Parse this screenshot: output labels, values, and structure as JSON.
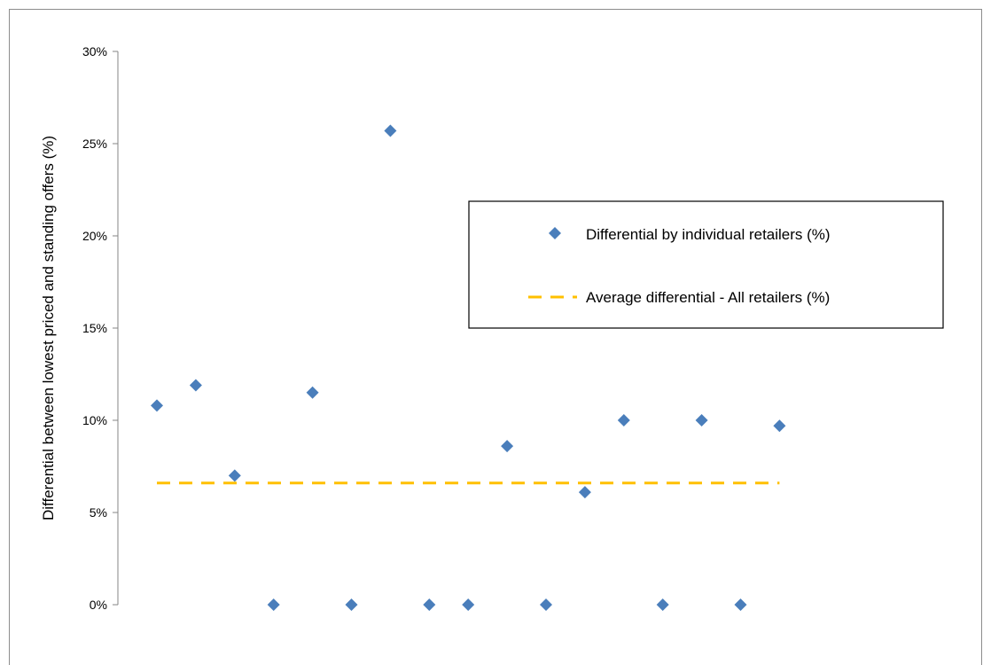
{
  "chart_data": {
    "type": "scatter",
    "title": "",
    "xlabel": "",
    "ylabel": "Differential between lowest priced  and standing offers (%)",
    "ylim": [
      0,
      30
    ],
    "y_ticks": [
      "0%",
      "5%",
      "10%",
      "15%",
      "20%",
      "25%",
      "30%"
    ],
    "grid": false,
    "legend_position": "right",
    "series": [
      {
        "name": "Differential by individual retailers (%)",
        "marker": "diamond",
        "color": "#4a7ebb",
        "x": [
          1,
          2,
          3,
          4,
          5,
          6,
          7,
          8,
          9,
          10,
          11,
          12,
          13,
          14,
          15,
          16,
          17
        ],
        "y": [
          10.8,
          11.9,
          7.0,
          0.0,
          11.5,
          0.0,
          25.7,
          0.0,
          0.0,
          8.6,
          0.0,
          6.1,
          10.0,
          0.0,
          10.0,
          0.0,
          9.7
        ]
      },
      {
        "name": "Average differential - All retailers (%)",
        "style": "dashed",
        "color": "#ffc000",
        "x": [
          1,
          17
        ],
        "y": [
          6.6,
          6.6
        ]
      }
    ]
  }
}
